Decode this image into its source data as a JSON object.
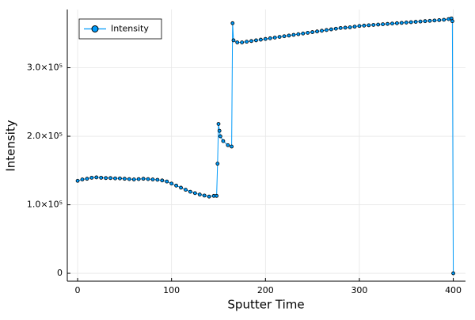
{
  "chart_data": {
    "type": "line",
    "xlabel": "Sputter Time",
    "ylabel": "Intensity",
    "x": [
      0,
      5,
      10,
      15,
      20,
      25,
      30,
      35,
      40,
      45,
      50,
      55,
      60,
      65,
      70,
      75,
      80,
      85,
      90,
      95,
      100,
      105,
      110,
      115,
      120,
      125,
      130,
      135,
      140,
      145,
      148,
      149,
      150,
      151,
      152,
      155,
      160,
      164,
      165,
      166,
      170,
      175,
      180,
      185,
      190,
      195,
      200,
      205,
      210,
      215,
      220,
      225,
      230,
      235,
      240,
      245,
      250,
      255,
      260,
      265,
      270,
      275,
      280,
      285,
      290,
      295,
      300,
      305,
      310,
      315,
      320,
      325,
      330,
      335,
      340,
      345,
      350,
      355,
      360,
      365,
      370,
      375,
      380,
      385,
      390,
      395,
      398,
      399,
      400
    ],
    "series": [
      {
        "name": "Intensity",
        "color": "#009af9",
        "values": [
          135000,
          137000,
          138000,
          139500,
          140000,
          139500,
          139000,
          139000,
          138500,
          138500,
          138000,
          137500,
          137000,
          137500,
          138000,
          137500,
          137000,
          136500,
          135500,
          134000,
          131000,
          128000,
          125000,
          122000,
          119000,
          117000,
          115000,
          113500,
          112000,
          113000,
          113000,
          160000,
          218000,
          208000,
          200000,
          193000,
          187000,
          185000,
          365000,
          340000,
          337000,
          337000,
          338000,
          339000,
          340000,
          341000,
          342000,
          343000,
          344000,
          345000,
          346000,
          347000,
          348000,
          349000,
          350000,
          351000,
          352000,
          353000,
          354000,
          355000,
          356000,
          357000,
          358000,
          358500,
          359000,
          360000,
          361000,
          361500,
          362000,
          362500,
          363000,
          363500,
          364000,
          364500,
          365000,
          365500,
          366000,
          366500,
          367000,
          367500,
          368000,
          368500,
          369000,
          369500,
          370000,
          371000,
          372000,
          368000,
          0
        ]
      }
    ],
    "xlim": [
      -11,
      413
    ],
    "ylim": [
      -11500,
      385000
    ],
    "xticks": [
      0,
      100,
      200,
      300,
      400
    ],
    "yticks": [
      0,
      {
        "value": 100000,
        "label": "1.0×10⁵"
      },
      {
        "value": 200000,
        "label": "2.0×10⁵"
      },
      {
        "value": 300000,
        "label": "3.0×10⁵"
      }
    ],
    "grid": true,
    "legend": "top-left"
  }
}
